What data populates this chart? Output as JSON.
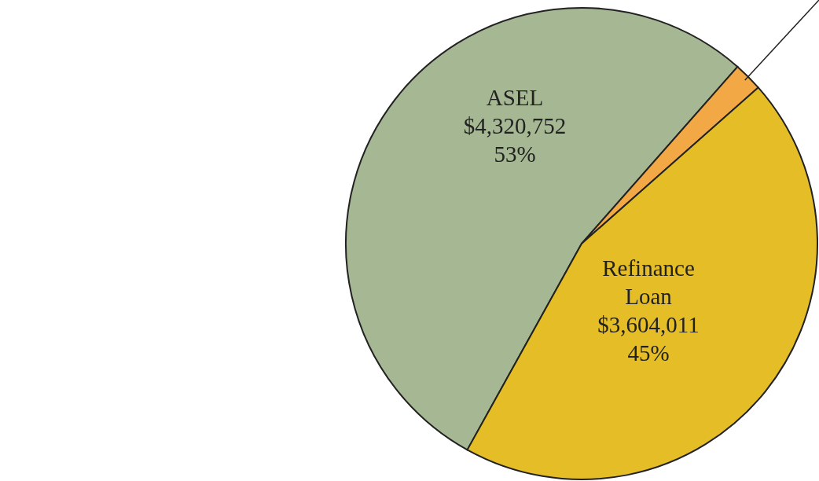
{
  "chart_data": {
    "type": "pie",
    "categories": [
      "ASEL",
      null,
      "Refinance Loan"
    ],
    "values": [
      4320752,
      160000,
      3604011
    ],
    "colors": [
      "#a6b793",
      "#f2a845",
      "#e4bd27"
    ],
    "value_labels": [
      "$4,320,752\n53%",
      null,
      "$3,604,011\n45%"
    ]
  }
}
